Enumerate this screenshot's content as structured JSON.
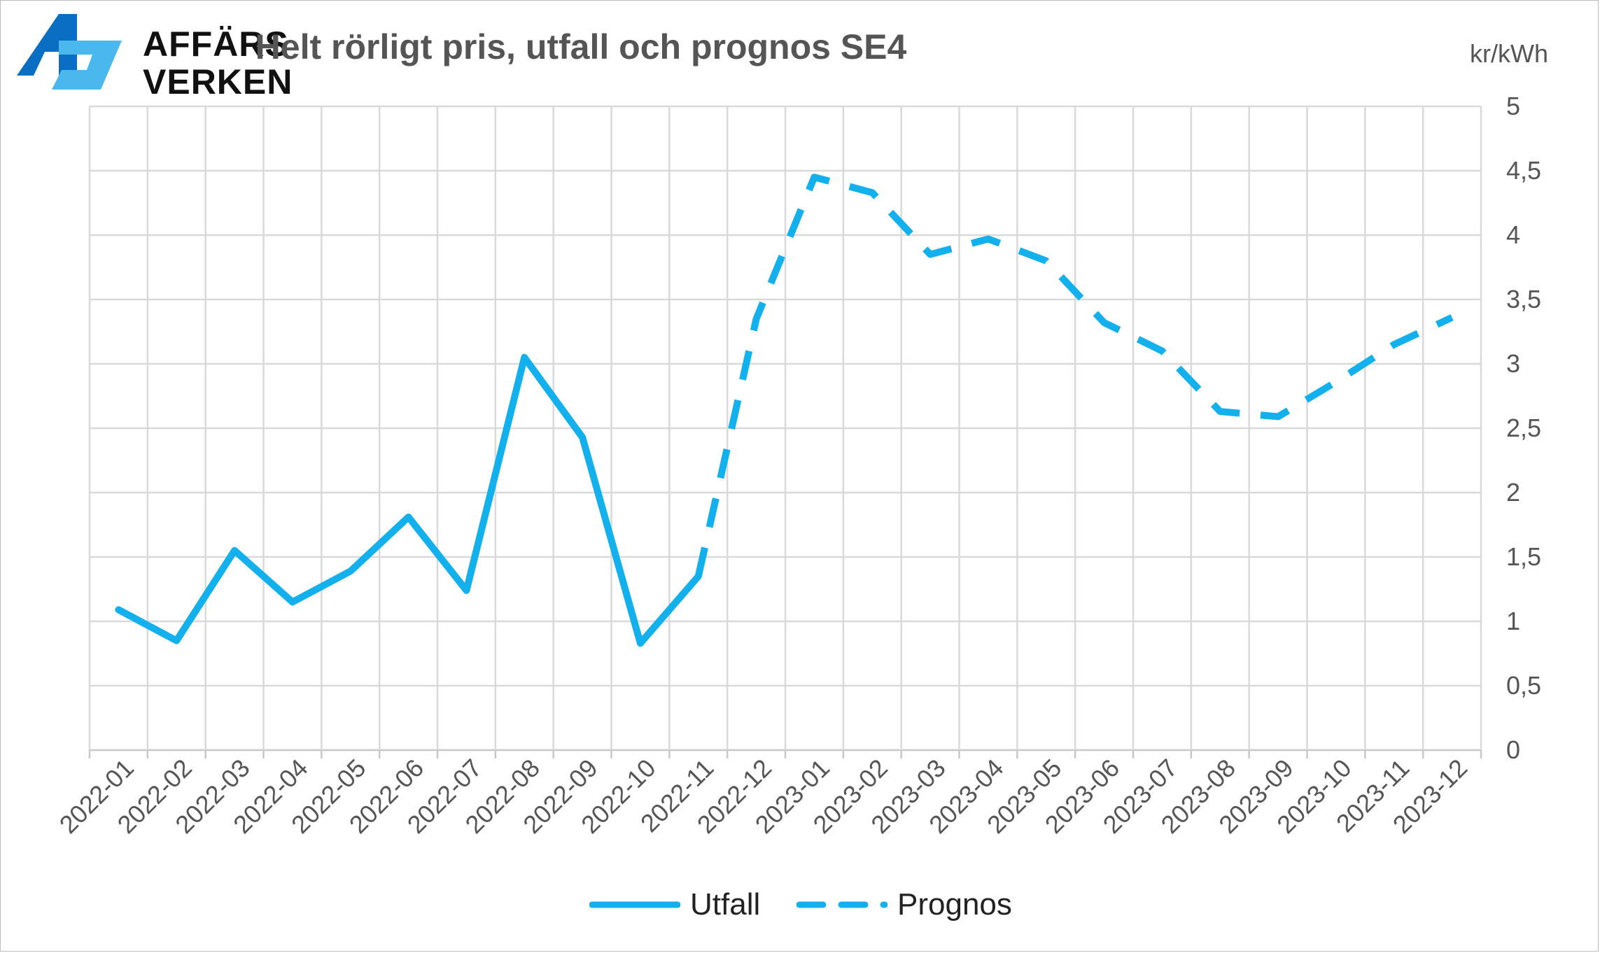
{
  "logo": {
    "line1": "AFFÄRS",
    "line2": "VERKEN",
    "colors": {
      "dark": "#0a6fc2",
      "light": "#4ab8ec"
    }
  },
  "chart_data": {
    "type": "line",
    "title": "Helt rörligt pris, utfall och prognos SE4",
    "ylabel": "kr/kWh",
    "xlabel": "",
    "categories": [
      "2022-01",
      "2022-02",
      "2022-03",
      "2022-04",
      "2022-05",
      "2022-06",
      "2022-07",
      "2022-08",
      "2022-09",
      "2022-10",
      "2022-11",
      "2022-12",
      "2023-01",
      "2023-02",
      "2023-03",
      "2023-04",
      "2023-05",
      "2023-06",
      "2023-07",
      "2023-08",
      "2023-09",
      "2023-10",
      "2023-11",
      "2023-12"
    ],
    "series": [
      {
        "name": "Utfall",
        "style": "solid",
        "color": "#12b0ec",
        "values": [
          1.09,
          0.85,
          1.55,
          1.15,
          1.39,
          1.81,
          1.24,
          3.05,
          2.43,
          0.83,
          1.35,
          null,
          null,
          null,
          null,
          null,
          null,
          null,
          null,
          null,
          null,
          null,
          null,
          null
        ]
      },
      {
        "name": "Prognos",
        "style": "dashed",
        "color": "#12b0ec",
        "values": [
          null,
          null,
          null,
          null,
          null,
          null,
          null,
          null,
          null,
          null,
          1.35,
          3.35,
          4.45,
          4.33,
          3.85,
          3.97,
          3.8,
          3.32,
          3.1,
          2.63,
          2.59,
          2.86,
          3.15,
          3.36
        ]
      }
    ],
    "ylim": [
      0,
      5
    ],
    "yticks": [
      "0",
      "0,5",
      "1",
      "1,5",
      "2",
      "2,5",
      "3",
      "3,5",
      "4",
      "4,5",
      "5"
    ],
    "yaxis_side": "right",
    "grid": true,
    "legend_position": "bottom"
  }
}
